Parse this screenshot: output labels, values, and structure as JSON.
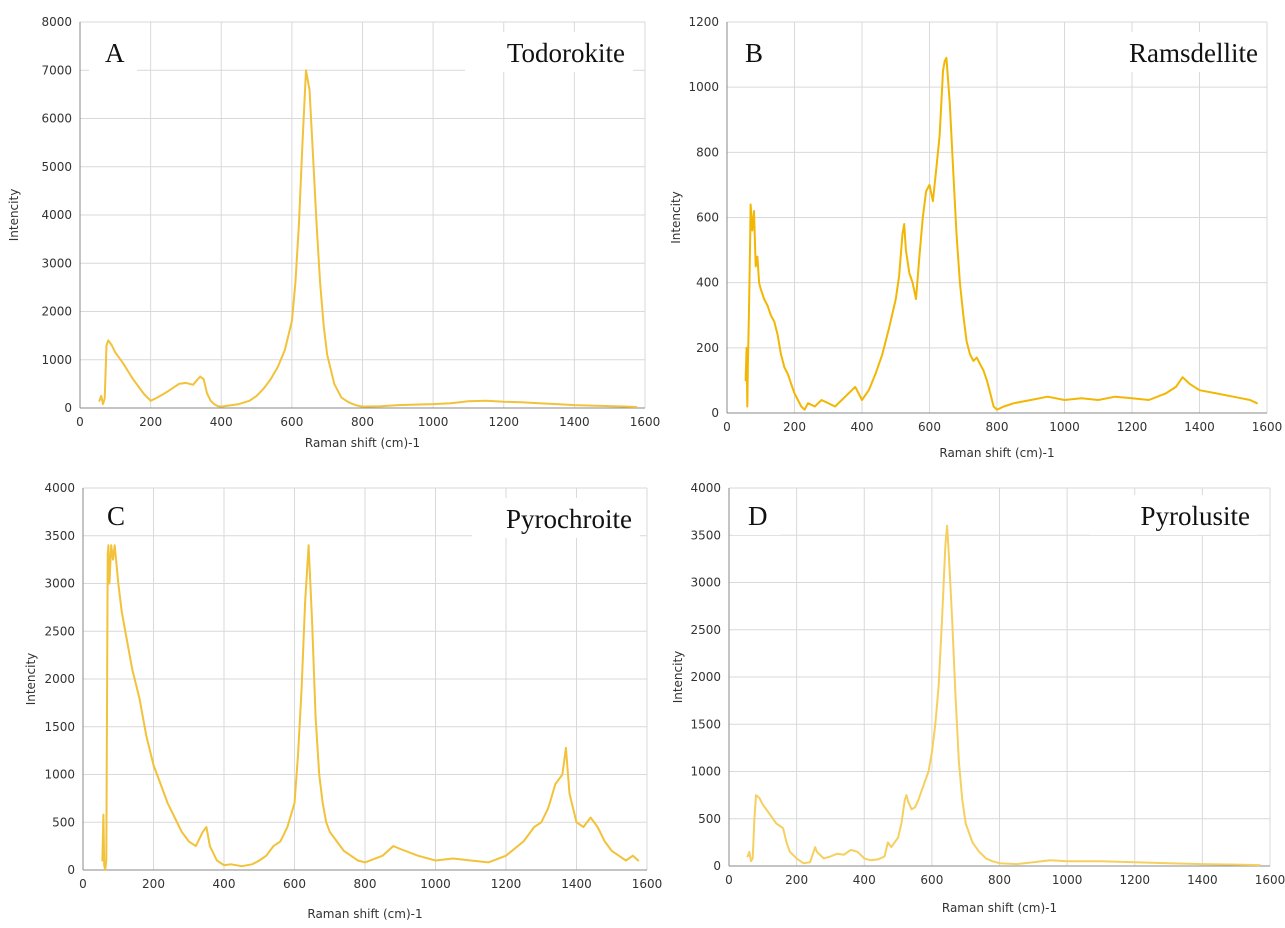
{
  "chart_data": [
    {
      "panel": "A",
      "type": "line",
      "title": "Todorokite",
      "xlabel": "Raman shift (cm)-1",
      "ylabel": "Intencity",
      "xlim": [
        0,
        1600
      ],
      "ylim": [
        0,
        8000
      ],
      "xticks": [
        "0",
        "200",
        "400",
        "600",
        "800",
        "1000",
        "1200",
        "1400",
        "1600"
      ],
      "yticks": [
        "0",
        "1000",
        "2000",
        "3000",
        "4000",
        "5000",
        "6000",
        "7000",
        "8000"
      ],
      "grid": true,
      "color": "#F2C23A",
      "x": [
        55,
        60,
        65,
        70,
        75,
        80,
        90,
        100,
        120,
        150,
        180,
        200,
        220,
        250,
        280,
        300,
        320,
        340,
        350,
        360,
        370,
        380,
        390,
        400,
        420,
        450,
        480,
        500,
        520,
        540,
        560,
        580,
        600,
        610,
        620,
        630,
        640,
        650,
        660,
        670,
        680,
        690,
        700,
        720,
        740,
        760,
        780,
        800,
        850,
        900,
        950,
        1000,
        1050,
        1100,
        1150,
        1200,
        1250,
        1300,
        1350,
        1400,
        1450,
        1500,
        1550,
        1575
      ],
      "y": [
        150,
        250,
        80,
        200,
        1300,
        1400,
        1300,
        1150,
        950,
        600,
        300,
        150,
        220,
        350,
        500,
        520,
        480,
        650,
        600,
        300,
        150,
        80,
        40,
        30,
        50,
        80,
        150,
        250,
        400,
        600,
        850,
        1200,
        1800,
        2600,
        3800,
        5500,
        7000,
        6600,
        5200,
        3800,
        2600,
        1700,
        1100,
        500,
        220,
        120,
        60,
        30,
        35,
        60,
        70,
        80,
        100,
        140,
        150,
        130,
        120,
        100,
        80,
        60,
        50,
        40,
        30,
        20
      ]
    },
    {
      "panel": "B",
      "type": "line",
      "title": "Ramsdellite",
      "xlabel": "Raman shift (cm)-1",
      "ylabel": "Intencity",
      "xlim": [
        0,
        1600
      ],
      "ylim": [
        0,
        1200
      ],
      "xticks": [
        "0",
        "200",
        "400",
        "600",
        "800",
        "1000",
        "1200",
        "1400",
        "1600"
      ],
      "yticks": [
        "0",
        "200",
        "400",
        "600",
        "800",
        "1000",
        "1200"
      ],
      "grid": true,
      "color": "#F2B705",
      "x": [
        55,
        58,
        60,
        62,
        65,
        68,
        70,
        75,
        80,
        85,
        90,
        95,
        100,
        110,
        120,
        130,
        140,
        150,
        160,
        170,
        180,
        190,
        200,
        210,
        220,
        230,
        240,
        260,
        280,
        300,
        320,
        340,
        360,
        380,
        400,
        420,
        440,
        460,
        480,
        500,
        510,
        520,
        525,
        530,
        540,
        550,
        560,
        570,
        580,
        590,
        600,
        610,
        620,
        630,
        640,
        645,
        650,
        660,
        670,
        680,
        690,
        700,
        710,
        720,
        730,
        740,
        750,
        760,
        770,
        780,
        790,
        800,
        820,
        850,
        900,
        950,
        1000,
        1050,
        1100,
        1150,
        1200,
        1250,
        1300,
        1330,
        1350,
        1370,
        1400,
        1450,
        1500,
        1550,
        1570
      ],
      "y": [
        100,
        200,
        20,
        150,
        300,
        500,
        640,
        560,
        620,
        450,
        480,
        400,
        380,
        350,
        330,
        300,
        280,
        240,
        180,
        140,
        120,
        90,
        60,
        40,
        20,
        10,
        30,
        20,
        40,
        30,
        20,
        40,
        60,
        80,
        40,
        70,
        120,
        180,
        260,
        350,
        420,
        550,
        580,
        500,
        430,
        400,
        350,
        480,
        600,
        680,
        700,
        650,
        750,
        850,
        1050,
        1080,
        1090,
        950,
        750,
        550,
        400,
        300,
        220,
        180,
        160,
        170,
        150,
        130,
        100,
        60,
        20,
        10,
        20,
        30,
        40,
        50,
        40,
        45,
        40,
        50,
        45,
        40,
        60,
        80,
        110,
        90,
        70,
        60,
        50,
        40,
        30
      ]
    },
    {
      "panel": "C",
      "type": "line",
      "title": "Pyrochroite",
      "xlabel": "Raman shift (cm)-1",
      "ylabel": "Intencity",
      "xlim": [
        0,
        1600
      ],
      "ylim": [
        0,
        4000
      ],
      "xticks": [
        "0",
        "200",
        "400",
        "600",
        "800",
        "1000",
        "1200",
        "1400",
        "1600"
      ],
      "yticks": [
        "0",
        "500",
        "1000",
        "1500",
        "2000",
        "2500",
        "3000",
        "3500",
        "4000"
      ],
      "grid": true,
      "color": "#F2C23A",
      "x": [
        55,
        58,
        60,
        63,
        66,
        70,
        72,
        75,
        80,
        85,
        90,
        95,
        100,
        110,
        120,
        140,
        160,
        180,
        200,
        220,
        240,
        260,
        280,
        300,
        320,
        340,
        350,
        360,
        380,
        400,
        420,
        450,
        480,
        500,
        520,
        540,
        560,
        580,
        600,
        610,
        620,
        630,
        640,
        650,
        660,
        670,
        680,
        690,
        700,
        720,
        740,
        760,
        780,
        800,
        850,
        880,
        900,
        950,
        1000,
        1050,
        1100,
        1150,
        1200,
        1250,
        1280,
        1300,
        1320,
        1340,
        1360,
        1370,
        1380,
        1400,
        1420,
        1440,
        1460,
        1480,
        1500,
        1520,
        1540,
        1560,
        1575
      ],
      "y": [
        100,
        580,
        50,
        0,
        100,
        3300,
        3400,
        3000,
        3400,
        3250,
        3400,
        3200,
        3000,
        2700,
        2500,
        2100,
        1800,
        1400,
        1100,
        900,
        700,
        550,
        400,
        300,
        250,
        400,
        450,
        250,
        100,
        50,
        60,
        40,
        60,
        100,
        150,
        250,
        300,
        450,
        700,
        1200,
        1900,
        2800,
        3400,
        2600,
        1600,
        1000,
        700,
        500,
        400,
        300,
        200,
        150,
        100,
        80,
        150,
        250,
        220,
        150,
        100,
        120,
        100,
        80,
        150,
        300,
        450,
        500,
        650,
        900,
        1000,
        1280,
        800,
        500,
        450,
        550,
        450,
        300,
        200,
        150,
        100,
        150,
        100
      ]
    },
    {
      "panel": "D",
      "type": "line",
      "title": "Pyrolusite",
      "xlabel": "Raman shift (cm)-1",
      "ylabel": "Intencity",
      "xlim": [
        0,
        1600
      ],
      "ylim": [
        0,
        4000
      ],
      "xticks": [
        "0",
        "200",
        "400",
        "600",
        "800",
        "1000",
        "1200",
        "1400",
        "1600"
      ],
      "yticks": [
        "0",
        "500",
        "1000",
        "1500",
        "2000",
        "2500",
        "3000",
        "3500",
        "4000"
      ],
      "grid": true,
      "color": "#F5D060",
      "x": [
        55,
        60,
        65,
        70,
        75,
        80,
        90,
        100,
        120,
        140,
        160,
        170,
        180,
        200,
        220,
        240,
        255,
        260,
        280,
        300,
        320,
        340,
        360,
        380,
        400,
        420,
        440,
        460,
        470,
        480,
        500,
        510,
        520,
        525,
        530,
        540,
        550,
        560,
        570,
        580,
        590,
        600,
        610,
        620,
        630,
        640,
        645,
        650,
        660,
        670,
        680,
        690,
        700,
        720,
        740,
        760,
        780,
        800,
        850,
        900,
        950,
        1000,
        1100,
        1200,
        1300,
        1400,
        1500,
        1570
      ],
      "y": [
        100,
        150,
        50,
        80,
        500,
        750,
        720,
        650,
        550,
        450,
        400,
        250,
        150,
        80,
        30,
        40,
        200,
        150,
        80,
        100,
        130,
        120,
        170,
        150,
        80,
        60,
        70,
        100,
        250,
        200,
        300,
        450,
        700,
        750,
        680,
        600,
        620,
        700,
        800,
        900,
        1000,
        1200,
        1500,
        1900,
        2600,
        3400,
        3600,
        3300,
        2600,
        1800,
        1100,
        700,
        450,
        250,
        150,
        80,
        50,
        30,
        20,
        40,
        60,
        50,
        50,
        40,
        30,
        20,
        15,
        10
      ]
    }
  ]
}
